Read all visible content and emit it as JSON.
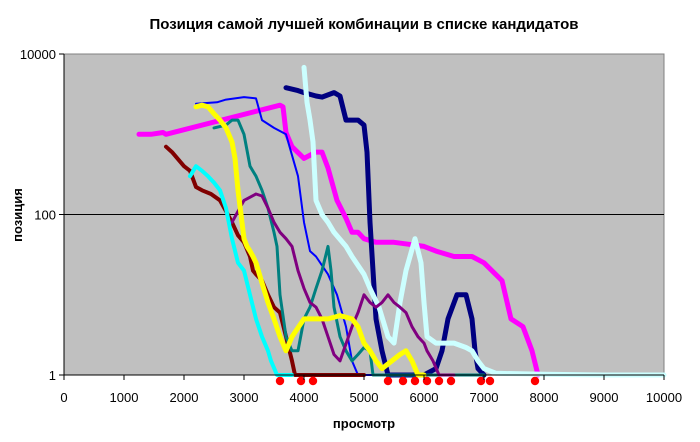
{
  "chart_data": {
    "type": "line",
    "title": "Позиция самой лучшей комбинации в списке кандидатов",
    "xlabel": "просмотр",
    "ylabel": "позиция",
    "xlim": [
      0,
      10000
    ],
    "ylim": [
      1,
      10000
    ],
    "y_scale": "log",
    "x_ticks": [
      "0",
      "1000",
      "2000",
      "3000",
      "4000",
      "5000",
      "6000",
      "7000",
      "8000",
      "9000",
      "10000"
    ],
    "y_ticks": [
      "1",
      "100",
      "10000"
    ],
    "plot_background": "#c0c0c0",
    "gridlines": "horizontal at 100",
    "series": [
      {
        "color": "#ff00ff",
        "width": 5,
        "points": [
          [
            1250,
            1000
          ],
          [
            1450,
            1000
          ],
          [
            1650,
            1050
          ],
          [
            1700,
            1000
          ],
          [
            3600,
            2300
          ],
          [
            3650,
            2200
          ],
          [
            3700,
            1050
          ],
          [
            3800,
            700
          ],
          [
            4000,
            500
          ],
          [
            4200,
            600
          ],
          [
            4300,
            600
          ],
          [
            4400,
            380
          ],
          [
            4550,
            150
          ],
          [
            4700,
            90
          ],
          [
            4800,
            60
          ],
          [
            4900,
            60
          ],
          [
            5000,
            50
          ],
          [
            5200,
            45
          ],
          [
            5500,
            45
          ],
          [
            5800,
            42
          ],
          [
            6000,
            40
          ],
          [
            6200,
            35
          ],
          [
            6500,
            30
          ],
          [
            6800,
            30
          ],
          [
            7000,
            25
          ],
          [
            7300,
            15
          ],
          [
            7450,
            5
          ],
          [
            7650,
            4
          ],
          [
            7800,
            2
          ],
          [
            7900,
            1
          ]
        ]
      },
      {
        "color": "#000080",
        "width": 5,
        "points": [
          [
            3700,
            3800
          ],
          [
            3900,
            3500
          ],
          [
            4000,
            3300
          ],
          [
            4200,
            3000
          ],
          [
            4300,
            2900
          ],
          [
            4500,
            3300
          ],
          [
            4600,
            3000
          ],
          [
            4700,
            1500
          ],
          [
            4900,
            1500
          ],
          [
            5000,
            1300
          ],
          [
            5050,
            600
          ],
          [
            5100,
            80
          ],
          [
            5150,
            20
          ],
          [
            5200,
            5
          ],
          [
            5300,
            2
          ],
          [
            5400,
            1
          ],
          [
            5500,
            1
          ],
          [
            6000,
            1
          ],
          [
            6200,
            1.2
          ],
          [
            6300,
            2
          ],
          [
            6400,
            5
          ],
          [
            6550,
            10
          ],
          [
            6700,
            10
          ],
          [
            6800,
            5
          ],
          [
            6850,
            2
          ],
          [
            6900,
            1.2
          ],
          [
            7000,
            1
          ]
        ]
      },
      {
        "color": "#0000ff",
        "width": 2,
        "points": [
          [
            2200,
            2400
          ],
          [
            2550,
            2500
          ],
          [
            2700,
            2700
          ],
          [
            3000,
            2900
          ],
          [
            3200,
            2800
          ],
          [
            3300,
            1500
          ],
          [
            3500,
            1200
          ],
          [
            3700,
            1000
          ],
          [
            3900,
            300
          ],
          [
            4000,
            80
          ],
          [
            4100,
            35
          ],
          [
            4200,
            30
          ],
          [
            4400,
            18
          ],
          [
            4550,
            10
          ],
          [
            4700,
            4
          ],
          [
            4800,
            1.5
          ],
          [
            4900,
            1
          ],
          [
            5100,
            1
          ],
          [
            5600,
            1
          ],
          [
            7000,
            1
          ]
        ]
      },
      {
        "color": "#ccffff",
        "width": 5,
        "points": [
          [
            4000,
            6800
          ],
          [
            4050,
            2500
          ],
          [
            4100,
            1500
          ],
          [
            4150,
            800
          ],
          [
            4200,
            150
          ],
          [
            4300,
            100
          ],
          [
            4400,
            80
          ],
          [
            4500,
            60
          ],
          [
            4700,
            40
          ],
          [
            4800,
            30
          ],
          [
            5000,
            18
          ],
          [
            5100,
            12
          ],
          [
            5150,
            10
          ],
          [
            5250,
            7
          ],
          [
            5400,
            3
          ],
          [
            5500,
            2.5
          ],
          [
            5600,
            8
          ],
          [
            5700,
            20
          ],
          [
            5850,
            50
          ],
          [
            5950,
            25
          ],
          [
            6000,
            8
          ],
          [
            6050,
            3
          ],
          [
            6200,
            2.5
          ],
          [
            6500,
            2.5
          ],
          [
            6700,
            2.2
          ],
          [
            6800,
            2
          ],
          [
            6900,
            1.5
          ],
          [
            7000,
            1.2
          ],
          [
            7200,
            1.05
          ],
          [
            8000,
            1.02
          ],
          [
            9000,
            1
          ],
          [
            10000,
            1
          ]
        ]
      },
      {
        "color": "#800000",
        "width": 4,
        "points": [
          [
            1700,
            700
          ],
          [
            1800,
            600
          ],
          [
            2000,
            400
          ],
          [
            2100,
            350
          ],
          [
            2200,
            220
          ],
          [
            2300,
            200
          ],
          [
            2450,
            180
          ],
          [
            2600,
            150
          ],
          [
            2700,
            110
          ],
          [
            2800,
            80
          ],
          [
            2900,
            55
          ],
          [
            3000,
            45
          ],
          [
            3100,
            30
          ],
          [
            3150,
            20
          ],
          [
            3200,
            18
          ],
          [
            3300,
            15
          ],
          [
            3400,
            10
          ],
          [
            3500,
            7
          ],
          [
            3600,
            6
          ],
          [
            3700,
            3
          ],
          [
            3800,
            1.5
          ],
          [
            3850,
            1
          ],
          [
            4000,
            1
          ],
          [
            4500,
            1
          ],
          [
            5000,
            1
          ]
        ]
      },
      {
        "color": "#008080",
        "width": 3,
        "points": [
          [
            2500,
            1200
          ],
          [
            2700,
            1300
          ],
          [
            2800,
            1500
          ],
          [
            2900,
            1500
          ],
          [
            3000,
            1000
          ],
          [
            3100,
            400
          ],
          [
            3200,
            300
          ],
          [
            3300,
            200
          ],
          [
            3400,
            120
          ],
          [
            3500,
            60
          ],
          [
            3550,
            40
          ],
          [
            3600,
            10
          ],
          [
            3700,
            3
          ],
          [
            3800,
            2
          ],
          [
            3900,
            2
          ],
          [
            4000,
            5
          ],
          [
            4100,
            7
          ],
          [
            4200,
            12
          ],
          [
            4300,
            20
          ],
          [
            4400,
            40
          ],
          [
            4450,
            20
          ],
          [
            4500,
            7
          ],
          [
            4600,
            3
          ],
          [
            4700,
            2
          ],
          [
            4800,
            1.5
          ],
          [
            4900,
            1.8
          ],
          [
            5000,
            2.2
          ],
          [
            5100,
            2
          ],
          [
            5150,
            1
          ],
          [
            5400,
            1
          ],
          [
            6000,
            1
          ],
          [
            7000,
            1
          ]
        ]
      },
      {
        "color": "#800080",
        "width": 3,
        "points": [
          [
            2800,
            80
          ],
          [
            3000,
            150
          ],
          [
            3200,
            180
          ],
          [
            3300,
            170
          ],
          [
            3400,
            120
          ],
          [
            3500,
            80
          ],
          [
            3600,
            60
          ],
          [
            3700,
            50
          ],
          [
            3800,
            40
          ],
          [
            3900,
            20
          ],
          [
            4000,
            12
          ],
          [
            4100,
            8
          ],
          [
            4200,
            7
          ],
          [
            4300,
            5
          ],
          [
            4400,
            3
          ],
          [
            4500,
            1.8
          ],
          [
            4600,
            1.5
          ],
          [
            4800,
            4
          ],
          [
            4900,
            6
          ],
          [
            5000,
            10
          ],
          [
            5100,
            8
          ],
          [
            5200,
            7
          ],
          [
            5300,
            8
          ],
          [
            5400,
            10
          ],
          [
            5500,
            8
          ],
          [
            5600,
            7
          ],
          [
            5700,
            6
          ],
          [
            5800,
            4
          ],
          [
            5900,
            3
          ],
          [
            6000,
            2.5
          ],
          [
            6050,
            2
          ],
          [
            6150,
            1.5
          ],
          [
            6250,
            1
          ],
          [
            6300,
            1
          ],
          [
            6500,
            1
          ]
        ]
      },
      {
        "color": "#ffff00",
        "width": 5,
        "points": [
          [
            2200,
            2200
          ],
          [
            2300,
            2300
          ],
          [
            2400,
            2200
          ],
          [
            2500,
            1800
          ],
          [
            2600,
            1500
          ],
          [
            2700,
            1200
          ],
          [
            2800,
            800
          ],
          [
            2850,
            500
          ],
          [
            2900,
            200
          ],
          [
            3000,
            50
          ],
          [
            3050,
            40
          ],
          [
            3100,
            35
          ],
          [
            3150,
            30
          ],
          [
            3200,
            25
          ],
          [
            3300,
            14
          ],
          [
            3400,
            8
          ],
          [
            3500,
            5
          ],
          [
            3600,
            3
          ],
          [
            3700,
            2
          ],
          [
            3800,
            3
          ],
          [
            4000,
            5
          ],
          [
            4300,
            5
          ],
          [
            4400,
            5
          ],
          [
            4600,
            5.5
          ],
          [
            4800,
            5
          ],
          [
            4900,
            4
          ],
          [
            5000,
            2.5
          ],
          [
            5100,
            2
          ],
          [
            5200,
            1.5
          ],
          [
            5300,
            1.2
          ],
          [
            5600,
            1.8
          ],
          [
            5700,
            2
          ],
          [
            5800,
            1.5
          ],
          [
            5900,
            1
          ],
          [
            6000,
            1
          ]
        ]
      },
      {
        "color": "#00ffff",
        "width": 4,
        "points": [
          [
            2100,
            300
          ],
          [
            2200,
            400
          ],
          [
            2300,
            350
          ],
          [
            2400,
            300
          ],
          [
            2500,
            250
          ],
          [
            2600,
            200
          ],
          [
            2700,
            120
          ],
          [
            2800,
            50
          ],
          [
            2900,
            25
          ],
          [
            3000,
            20
          ],
          [
            3100,
            10
          ],
          [
            3200,
            5
          ],
          [
            3300,
            3
          ],
          [
            3400,
            2
          ],
          [
            3450,
            1.5
          ],
          [
            3550,
            1
          ],
          [
            3600,
            1
          ],
          [
            3800,
            1
          ]
        ]
      }
    ],
    "points_at_y1": [
      3600,
      3950,
      4150,
      5400,
      5650,
      5850,
      6050,
      6250,
      6450,
      6950,
      7100,
      7850
    ]
  }
}
